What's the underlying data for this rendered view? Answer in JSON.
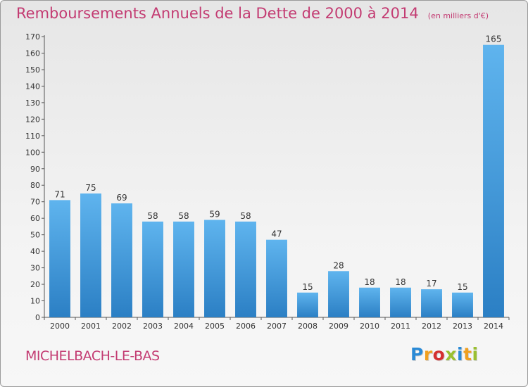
{
  "header": {
    "title": "Remboursements Annuels de la Dette de 2000 à 2014",
    "subtitle": "(en milliers d'€)"
  },
  "footer": {
    "commune": "MICHELBACH-LE-BAS",
    "logo_text": "Proxiti",
    "logo_colors": [
      "#2a8ad6",
      "#f0a020",
      "#d43030",
      "#9ac030",
      "#2a8ad6",
      "#f0a020",
      "#9ac030"
    ]
  },
  "colors": {
    "bar_light": "#5fb4ee",
    "bar_dark": "#2b7fc4",
    "title": "#c33b72"
  },
  "chart_data": {
    "type": "bar",
    "title": "Remboursements Annuels de la Dette de 2000 à 2014",
    "subtitle": "(en milliers d'€)",
    "categories": [
      "2000",
      "2001",
      "2002",
      "2003",
      "2004",
      "2005",
      "2006",
      "2007",
      "2008",
      "2009",
      "2010",
      "2011",
      "2012",
      "2013",
      "2014"
    ],
    "values": [
      71,
      75,
      69,
      58,
      58,
      59,
      58,
      47,
      15,
      28,
      18,
      18,
      17,
      15,
      165
    ],
    "ylim": [
      0,
      170
    ],
    "ytick_step": 10,
    "grid": false,
    "legend": "none"
  }
}
